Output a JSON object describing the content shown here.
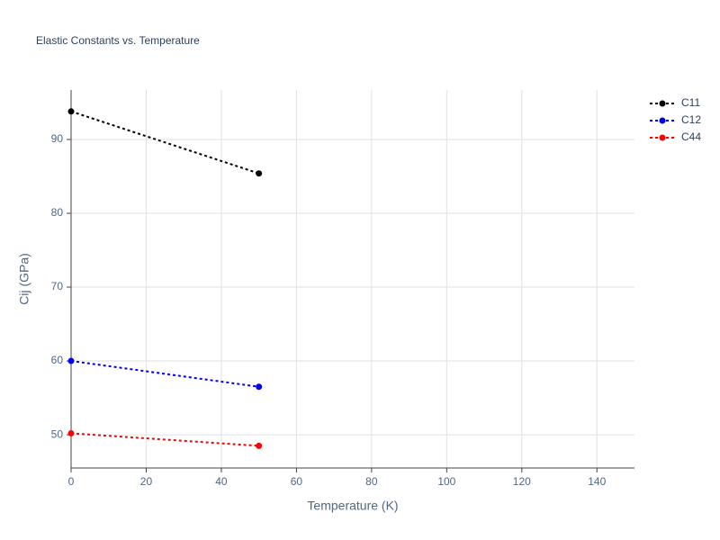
{
  "chart_data": {
    "type": "line",
    "title": "Elastic Constants vs. Temperature",
    "x_label": "Temperature (K)",
    "y_label": "Cij (GPa)",
    "x": [
      0,
      50
    ],
    "series": [
      {
        "name": "C11",
        "color": "#000000",
        "values": [
          93.8,
          85.4
        ]
      },
      {
        "name": "C12",
        "color": "#0000ff",
        "values": [
          60.0,
          56.5
        ]
      },
      {
        "name": "C44",
        "color": "#ff0000",
        "values": [
          50.2,
          48.5
        ]
      }
    ],
    "xlim": [
      0,
      150
    ],
    "xticks": [
      0,
      20,
      40,
      60,
      80,
      100,
      120,
      140
    ],
    "ylim": [
      45.5,
      96.7
    ],
    "yticks": [
      50,
      60,
      70,
      80,
      90
    ],
    "grid": true,
    "legend": "right"
  }
}
